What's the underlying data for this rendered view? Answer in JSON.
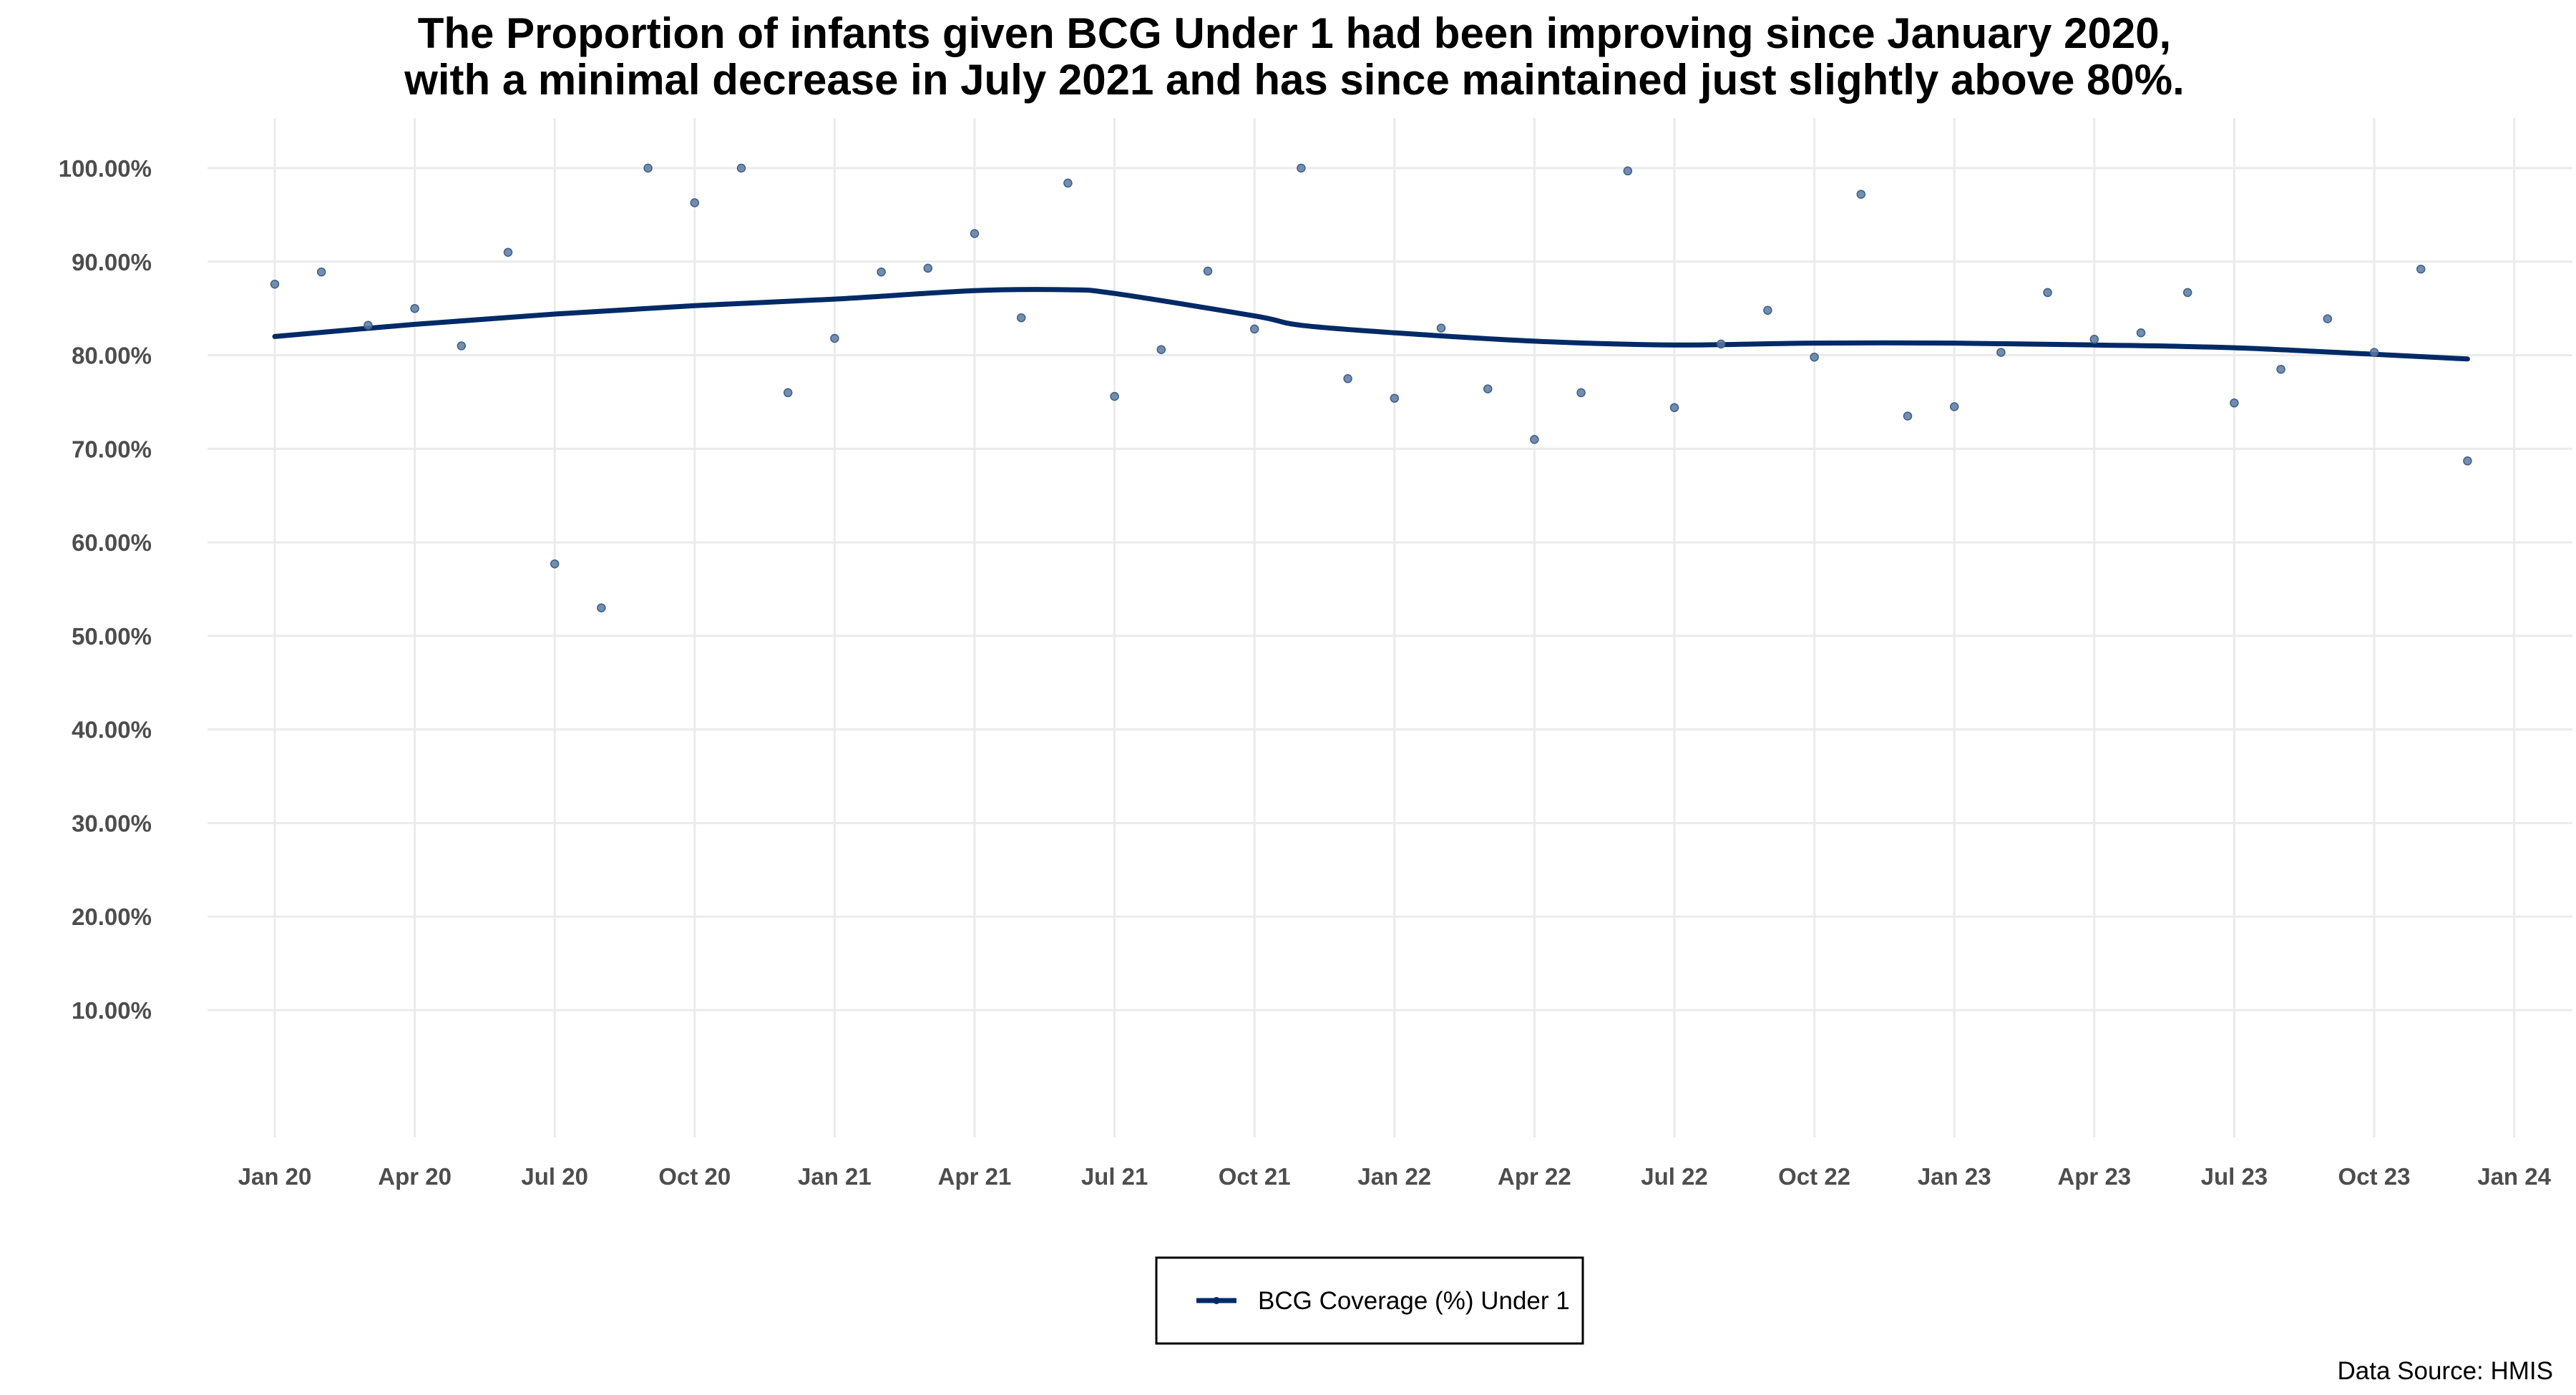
{
  "chart_data": {
    "type": "scatter",
    "title": "The Proportion of infants given BCG Under 1 had been improving since January 2020,",
    "subtitle": "with a minimal decrease in July 2021 and has since maintained just slightly above 80%.",
    "xlabel": "",
    "ylabel": "",
    "x_tick_labels": [
      "Jan 20",
      "Apr 20",
      "Jul 20",
      "Oct 20",
      "Jan 21",
      "Apr 21",
      "Jul 21",
      "Oct 21",
      "Jan 22",
      "Apr 22",
      "Jul 22",
      "Oct 22",
      "Jan 23",
      "Apr 23",
      "Jul 23",
      "Oct 23",
      "Jan 24"
    ],
    "x_ticks": [
      "2020-01",
      "2020-04",
      "2020-07",
      "2020-10",
      "2021-01",
      "2021-04",
      "2021-07",
      "2021-10",
      "2022-01",
      "2022-04",
      "2022-07",
      "2022-10",
      "2023-01",
      "2023-04",
      "2023-07",
      "2023-10",
      "2024-01"
    ],
    "y_tick_labels": [
      "10.00%",
      "20.00%",
      "30.00%",
      "40.00%",
      "50.00%",
      "60.00%",
      "70.00%",
      "80.00%",
      "90.00%",
      "100.00%"
    ],
    "y_ticks": [
      10,
      20,
      30,
      40,
      50,
      60,
      70,
      80,
      90,
      100
    ],
    "xlim": [
      "2019-11",
      "2024-02"
    ],
    "ylim": [
      0,
      105
    ],
    "grid": true,
    "legend_position": "bottom",
    "series": [
      {
        "name": "BCG Coverage (%) Under 1",
        "type": "scatter",
        "color": "#5a7aa0",
        "x": [
          "2020-01",
          "2020-02",
          "2020-03",
          "2020-04",
          "2020-05",
          "2020-06",
          "2020-07",
          "2020-08",
          "2020-09",
          "2020-10",
          "2020-11",
          "2020-12",
          "2021-01",
          "2021-02",
          "2021-03",
          "2021-04",
          "2021-05",
          "2021-06",
          "2021-07",
          "2021-08",
          "2021-09",
          "2021-10",
          "2021-11",
          "2021-12",
          "2022-01",
          "2022-02",
          "2022-03",
          "2022-04",
          "2022-05",
          "2022-06",
          "2022-07",
          "2022-08",
          "2022-09",
          "2022-10",
          "2022-11",
          "2022-12",
          "2023-01",
          "2023-02",
          "2023-03",
          "2023-04",
          "2023-05",
          "2023-06",
          "2023-07",
          "2023-08",
          "2023-09",
          "2023-10",
          "2023-11",
          "2023-12"
        ],
        "values": [
          87.6,
          88.9,
          83.2,
          85.0,
          81.0,
          91.0,
          57.7,
          53.0,
          100.0,
          96.3,
          100.0,
          76.0,
          81.8,
          88.9,
          89.3,
          93.0,
          84.0,
          98.4,
          75.6,
          80.6,
          89.0,
          82.8,
          100.0,
          77.5,
          75.4,
          82.9,
          76.4,
          71.0,
          76.0,
          99.7,
          74.4,
          81.2,
          84.8,
          79.8,
          97.2,
          73.5,
          74.5,
          80.3,
          86.7,
          81.7,
          82.4,
          86.7,
          74.9,
          78.5,
          83.9,
          80.3,
          89.2,
          68.7
        ]
      },
      {
        "name": "BCG Coverage (%) Under 1",
        "type": "line",
        "smooth": true,
        "color": "#002a66",
        "x": [
          "2020-01",
          "2020-04",
          "2020-07",
          "2020-10",
          "2021-01",
          "2021-04",
          "2021-06",
          "2021-07",
          "2021-10",
          "2021-11",
          "2022-01",
          "2022-04",
          "2022-07",
          "2022-10",
          "2023-01",
          "2023-04",
          "2023-07",
          "2023-10",
          "2023-12"
        ],
        "values": [
          82.0,
          83.3,
          84.4,
          85.3,
          86.0,
          86.9,
          87.0,
          86.6,
          84.2,
          83.2,
          82.4,
          81.5,
          81.1,
          81.3,
          81.3,
          81.1,
          80.8,
          80.1,
          79.6
        ]
      }
    ]
  },
  "legend": {
    "label": "BCG Coverage (%) Under 1"
  },
  "caption": {
    "text": "Data Source: HMIS"
  },
  "colors": {
    "grid": "#ebebeb",
    "point": "#5a7aa0",
    "line": "#002a66",
    "tick_text": "#4d4d4d"
  }
}
